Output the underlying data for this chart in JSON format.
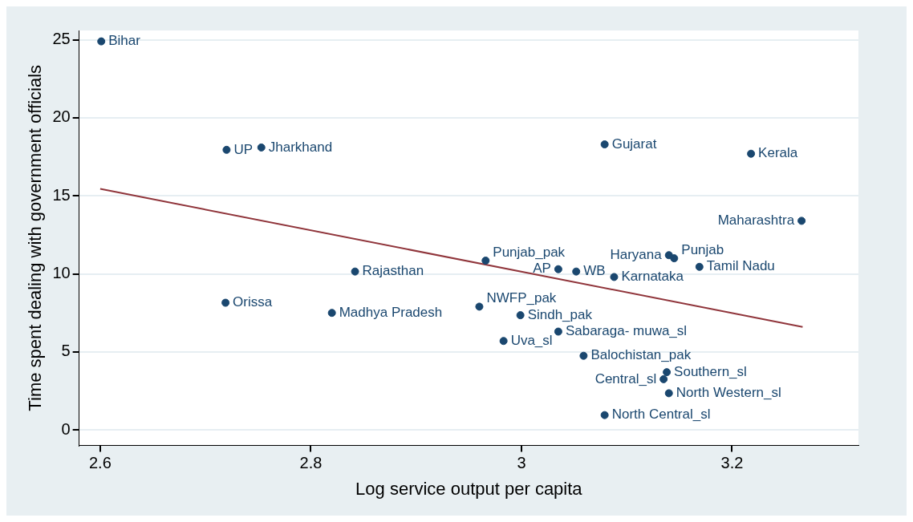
{
  "chart_data": {
    "type": "scatter",
    "xlabel": "Log service output per capita",
    "ylabel": "Time spent dealing with government officials",
    "xlim": [
      2.58,
      3.32
    ],
    "ylim": [
      -1,
      25.6
    ],
    "xticks": [
      2.6,
      2.8,
      3,
      3.2
    ],
    "yticks": [
      0,
      5,
      10,
      15,
      20,
      25
    ],
    "grid": "y",
    "legend": false,
    "marker": "circle",
    "series": [
      {
        "type": "scatter",
        "color": "#1a476f",
        "x": [
          2.601,
          2.72,
          2.753,
          3.079,
          3.218,
          3.266,
          3.14,
          3.145,
          3.169,
          2.966,
          3.035,
          3.052,
          3.088,
          2.842,
          2.719,
          2.82,
          2.96,
          2.999,
          3.035,
          2.983,
          3.059,
          3.138,
          3.135,
          3.14,
          3.079
        ],
        "values": [
          24.9,
          17.95,
          18.1,
          18.3,
          17.7,
          13.4,
          11.2,
          11.0,
          10.45,
          10.85,
          10.3,
          10.15,
          9.8,
          10.15,
          8.15,
          7.5,
          7.9,
          7.35,
          6.3,
          5.7,
          4.75,
          3.7,
          3.25,
          2.35,
          0.95
        ]
      },
      {
        "type": "line",
        "color": "#90353b",
        "marker": "none",
        "x": [
          2.6,
          3.267
        ],
        "values": [
          15.45,
          6.6
        ]
      }
    ],
    "annotations": [
      {
        "text": "Bihar",
        "x": 2.601,
        "y": 24.9
      },
      {
        "text": "UP",
        "x": 2.72,
        "y": 17.95
      },
      {
        "text": "Jharkhand",
        "x": 2.753,
        "y": 18.1
      },
      {
        "text": "Gujarat",
        "x": 3.079,
        "y": 18.3
      },
      {
        "text": "Kerala",
        "x": 3.218,
        "y": 17.7
      },
      {
        "text": "Maharashtra",
        "x": 3.266,
        "y": 13.4
      },
      {
        "text": "Haryana",
        "x": 3.14,
        "y": 11.2
      },
      {
        "text": "Punjab",
        "x": 3.145,
        "y": 11.0
      },
      {
        "text": "Tamil Nadu",
        "x": 3.169,
        "y": 10.45
      },
      {
        "text": "Punjab_pak",
        "x": 2.966,
        "y": 10.85
      },
      {
        "text": "AP",
        "x": 3.035,
        "y": 10.3
      },
      {
        "text": "WB",
        "x": 3.052,
        "y": 10.15
      },
      {
        "text": "Karnataka",
        "x": 3.088,
        "y": 9.8
      },
      {
        "text": "Rajasthan",
        "x": 2.842,
        "y": 10.15
      },
      {
        "text": "Orissa",
        "x": 2.719,
        "y": 8.15
      },
      {
        "text": "Madhya Pradesh",
        "x": 2.82,
        "y": 7.5
      },
      {
        "text": "NWFP_pak",
        "x": 2.96,
        "y": 7.9
      },
      {
        "text": "Sindh_pak",
        "x": 2.999,
        "y": 7.35
      },
      {
        "text": "Sabaraga- muwa_sl",
        "x": 3.035,
        "y": 6.3
      },
      {
        "text": "Uva_sl",
        "x": 2.983,
        "y": 5.7
      },
      {
        "text": "Balochistan_pak",
        "x": 3.059,
        "y": 4.75
      },
      {
        "text": "Southern_sl",
        "x": 3.138,
        "y": 3.7
      },
      {
        "text": "Central_sl",
        "x": 3.135,
        "y": 3.25
      },
      {
        "text": "North Western_sl",
        "x": 3.14,
        "y": 2.35
      },
      {
        "text": "North Central_sl",
        "x": 3.079,
        "y": 0.95
      }
    ]
  }
}
